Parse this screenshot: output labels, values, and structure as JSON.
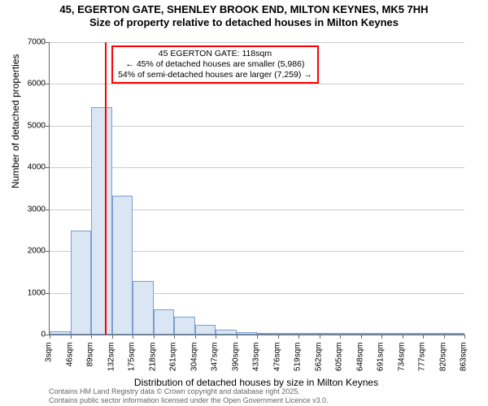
{
  "title_line1": "45, EGERTON GATE, SHENLEY BROOK END, MILTON KEYNES, MK5 7HH",
  "title_line2": "Size of property relative to detached houses in Milton Keynes",
  "ylabel": "Number of detached properties",
  "xlabel": "Distribution of detached houses by size in Milton Keynes",
  "caption_line1": "Contains HM Land Registry data © Crown copyright and database right 2025.",
  "caption_line2": "Contains public sector information licensed under the Open Government Licence v3.0.",
  "chart": {
    "type": "histogram",
    "yticks": [
      0,
      1000,
      2000,
      3000,
      4000,
      5000,
      6000,
      7000
    ],
    "ylim_max": 7000,
    "xtick_labels": [
      "3sqm",
      "46sqm",
      "89sqm",
      "132sqm",
      "175sqm",
      "218sqm",
      "261sqm",
      "304sqm",
      "347sqm",
      "390sqm",
      "433sqm",
      "476sqm",
      "519sqm",
      "562sqm",
      "605sqm",
      "648sqm",
      "691sqm",
      "734sqm",
      "777sqm",
      "820sqm",
      "863sqm"
    ],
    "values": [
      80,
      2480,
      5450,
      3320,
      1280,
      600,
      420,
      230,
      110,
      60,
      30,
      15,
      10,
      8,
      6,
      5,
      4,
      3,
      2,
      1
    ],
    "bar_fill": "#dbe6f4",
    "bar_stroke": "#7a9ecf",
    "grid_color": "#cccccc",
    "background": "#ffffff",
    "marker": {
      "bin_index": 2,
      "fraction_in_bin": 0.67,
      "color": "#ff0000"
    },
    "annotation": {
      "line1": "45 EGERTON GATE: 118sqm",
      "line2": "← 45% of detached houses are smaller (5,986)",
      "line3": "54% of semi-detached houses are larger (7,259) →",
      "border_color": "#ff0000"
    }
  }
}
